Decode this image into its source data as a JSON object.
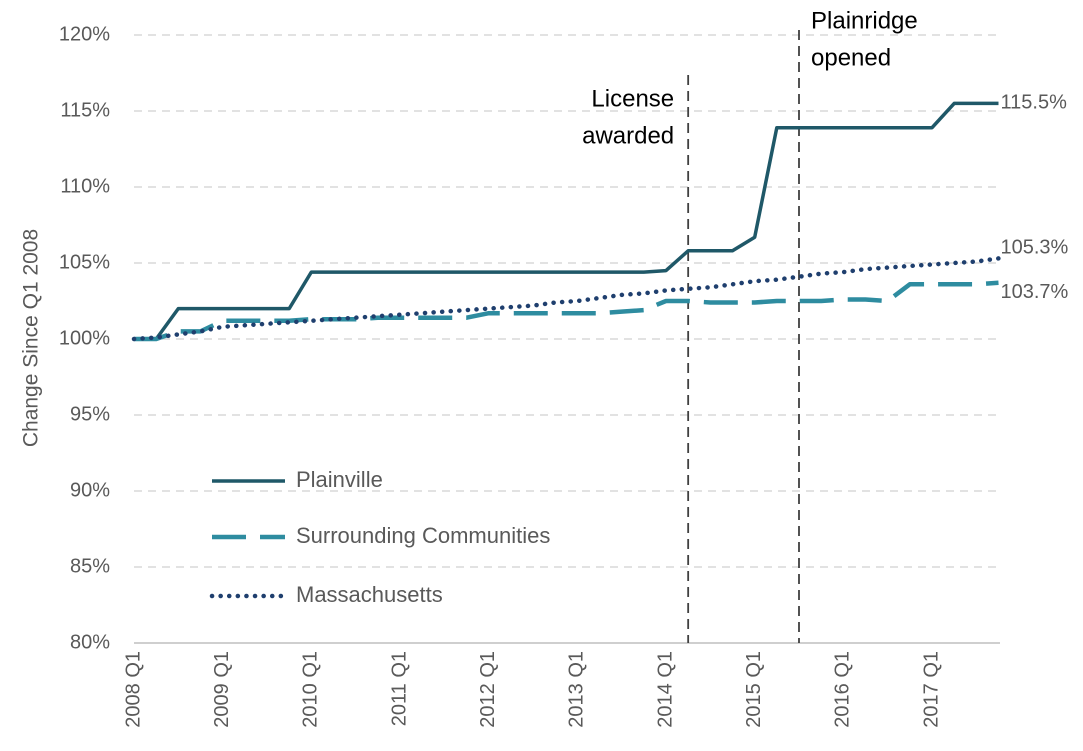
{
  "chart_data": {
    "type": "line",
    "y_label": "Change Since Q1 2008",
    "categories": [
      "2008 Q1",
      null,
      null,
      null,
      "2009 Q1",
      null,
      null,
      null,
      "2010 Q1",
      null,
      null,
      null,
      "2011 Q1",
      null,
      null,
      null,
      "2012 Q1",
      null,
      null,
      null,
      "2013 Q1",
      null,
      null,
      null,
      "2014 Q1",
      null,
      null,
      null,
      "2015 Q1",
      null,
      null,
      null,
      "2016 Q1",
      null,
      null,
      null,
      "2017 Q1",
      null,
      null,
      null
    ],
    "series": [
      {
        "name": "Plainville",
        "color": "#1f5868",
        "style": "solid",
        "values": [
          100,
          100,
          102,
          102,
          102,
          102,
          102,
          102,
          104.4,
          104.4,
          104.4,
          104.4,
          104.4,
          104.4,
          104.4,
          104.4,
          104.4,
          104.4,
          104.4,
          104.4,
          104.4,
          104.4,
          104.4,
          104.4,
          104.5,
          105.8,
          105.8,
          105.8,
          106.7,
          113.9,
          113.9,
          113.9,
          113.9,
          113.9,
          113.9,
          113.9,
          113.9,
          115.5,
          115.5,
          115.5
        ],
        "value_labels": [
          null,
          null,
          null,
          null,
          null,
          null,
          null,
          null,
          null,
          null,
          null,
          null,
          null,
          null,
          null,
          null,
          null,
          null,
          null,
          null,
          null,
          null,
          null,
          null,
          null,
          null,
          null,
          null,
          null,
          null,
          null,
          null,
          null,
          null,
          null,
          null,
          null,
          null,
          null,
          "115.5%"
        ]
      },
      {
        "name": "Surrounding Communities",
        "color": "#2e8ca0",
        "style": "dashed",
        "values": [
          100,
          100,
          100.5,
          100.5,
          101.2,
          101.2,
          101.2,
          101.2,
          101.3,
          101.3,
          101.3,
          101.4,
          101.4,
          101.4,
          101.4,
          101.4,
          101.7,
          101.7,
          101.7,
          101.7,
          101.7,
          101.7,
          101.8,
          101.9,
          102.5,
          102.5,
          102.4,
          102.4,
          102.4,
          102.5,
          102.5,
          102.5,
          102.6,
          102.6,
          102.5,
          103.6,
          103.6,
          103.6,
          103.6,
          103.7
        ],
        "value_labels": [
          null,
          null,
          null,
          null,
          null,
          null,
          null,
          null,
          null,
          null,
          null,
          null,
          null,
          null,
          null,
          null,
          null,
          null,
          null,
          null,
          null,
          null,
          null,
          null,
          null,
          null,
          null,
          null,
          null,
          null,
          null,
          null,
          null,
          null,
          null,
          null,
          null,
          null,
          null,
          "103.7%"
        ]
      },
      {
        "name": "Massachusetts",
        "color": "#1f3f6e",
        "style": "dotted",
        "values": [
          100,
          100.1,
          100.3,
          100.5,
          100.8,
          100.9,
          101.0,
          101.1,
          101.2,
          101.3,
          101.4,
          101.5,
          101.6,
          101.7,
          101.8,
          101.9,
          102.0,
          102.1,
          102.2,
          102.4,
          102.5,
          102.7,
          102.9,
          103.0,
          103.2,
          103.3,
          103.4,
          103.6,
          103.8,
          103.9,
          104.1,
          104.3,
          104.4,
          104.6,
          104.7,
          104.8,
          104.9,
          105.0,
          105.1,
          105.3
        ],
        "value_labels": [
          null,
          null,
          null,
          null,
          null,
          null,
          null,
          null,
          null,
          null,
          null,
          null,
          null,
          null,
          null,
          null,
          null,
          null,
          null,
          null,
          null,
          null,
          null,
          null,
          null,
          null,
          null,
          null,
          null,
          null,
          null,
          null,
          null,
          null,
          null,
          null,
          null,
          null,
          null,
          "105.3%"
        ]
      }
    ],
    "ylim": [
      80,
      120
    ],
    "yticks": [
      {
        "value": 80,
        "label": "80%"
      },
      {
        "value": 85,
        "label": "85%"
      },
      {
        "value": 90,
        "label": "90%"
      },
      {
        "value": 95,
        "label": "95%"
      },
      {
        "value": 100,
        "label": "100%"
      },
      {
        "value": 105,
        "label": "105%"
      },
      {
        "value": 110,
        "label": "110%"
      },
      {
        "value": 115,
        "label": "115%"
      },
      {
        "value": 120,
        "label": "120%"
      }
    ],
    "grid": true,
    "legend": "lower left",
    "annotations": [
      {
        "x_index": 25,
        "lines": [
          "License",
          "awarded"
        ]
      },
      {
        "x_index": 30,
        "lines": [
          "Plainridge",
          "opened"
        ]
      }
    ]
  }
}
